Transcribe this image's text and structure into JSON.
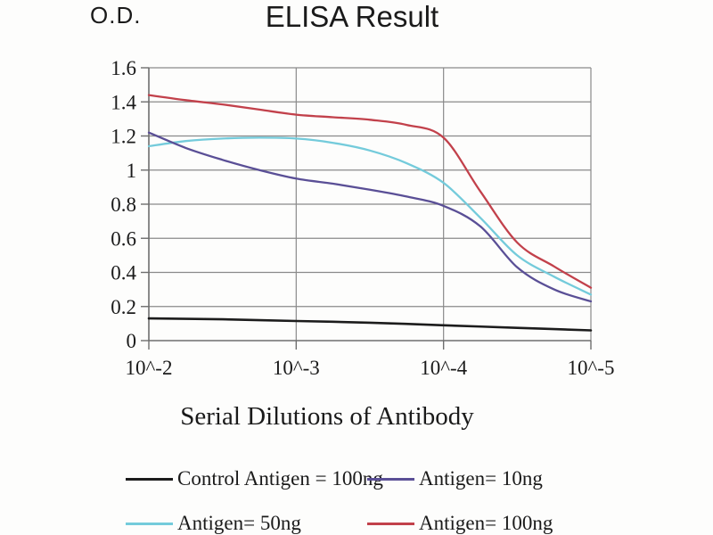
{
  "figure": {
    "od_label": "O.D.",
    "title": "ELISA Result",
    "xlabel": "Serial Dilutions of Antibody",
    "background": "#fdfdfc"
  },
  "chart_data": {
    "type": "line",
    "title": "ELISA Result",
    "ylabel": "O.D.",
    "xlabel": "Serial Dilutions of Antibody",
    "x_scale": "serial-dilution-decades",
    "x_tick_labels": [
      "10^-2",
      "10^-3",
      "10^-4",
      "10^-5"
    ],
    "x_tick_positions": [
      0,
      1,
      2,
      3
    ],
    "y_tick_labels": [
      "0",
      "0.2",
      "0.4",
      "0.6",
      "0.8",
      "1",
      "1.2",
      "1.4",
      "1.6"
    ],
    "y_tick_values": [
      0,
      0.2,
      0.4,
      0.6,
      0.8,
      1,
      1.2,
      1.4,
      1.6
    ],
    "xlim": [
      0,
      3
    ],
    "ylim": [
      0,
      1.6
    ],
    "grid": true,
    "legend_position": "bottom",
    "colors": {
      "grid": "#8a8a8a",
      "axis": "#6e6e6e",
      "text": "#1a1a1a",
      "control": "#1c1c1c",
      "antigen_10ng": "#5a4f96",
      "antigen_50ng": "#74cbdb",
      "antigen_100ng": "#c2414b"
    },
    "series": [
      {
        "name": "Control Antigen = 100ng",
        "color": "#1c1c1c",
        "x": [
          0,
          0.5,
          1,
          1.5,
          2,
          2.5,
          3
        ],
        "values": [
          0.13,
          0.125,
          0.115,
          0.105,
          0.09,
          0.075,
          0.06
        ]
      },
      {
        "name": "Antigen= 10ng",
        "color": "#5a4f96",
        "x": [
          0,
          0.25,
          0.5,
          0.75,
          1,
          1.25,
          1.5,
          1.75,
          2,
          2.25,
          2.5,
          2.75,
          3
        ],
        "values": [
          1.22,
          1.13,
          1.06,
          1.0,
          0.95,
          0.92,
          0.885,
          0.845,
          0.79,
          0.67,
          0.43,
          0.3,
          0.23
        ]
      },
      {
        "name": "Antigen= 50ng",
        "color": "#74cbdb",
        "x": [
          0,
          0.25,
          0.5,
          0.75,
          1,
          1.25,
          1.5,
          1.75,
          2,
          2.25,
          2.5,
          2.75,
          3
        ],
        "values": [
          1.14,
          1.17,
          1.185,
          1.19,
          1.185,
          1.16,
          1.115,
          1.04,
          0.925,
          0.72,
          0.5,
          0.375,
          0.27
        ]
      },
      {
        "name": "Antigen= 100ng",
        "color": "#c2414b",
        "x": [
          0,
          0.25,
          0.5,
          0.75,
          1,
          1.25,
          1.5,
          1.75,
          2,
          2.25,
          2.5,
          2.75,
          3
        ],
        "values": [
          1.44,
          1.41,
          1.385,
          1.355,
          1.325,
          1.31,
          1.295,
          1.265,
          1.19,
          0.875,
          0.575,
          0.435,
          0.31
        ]
      }
    ]
  }
}
